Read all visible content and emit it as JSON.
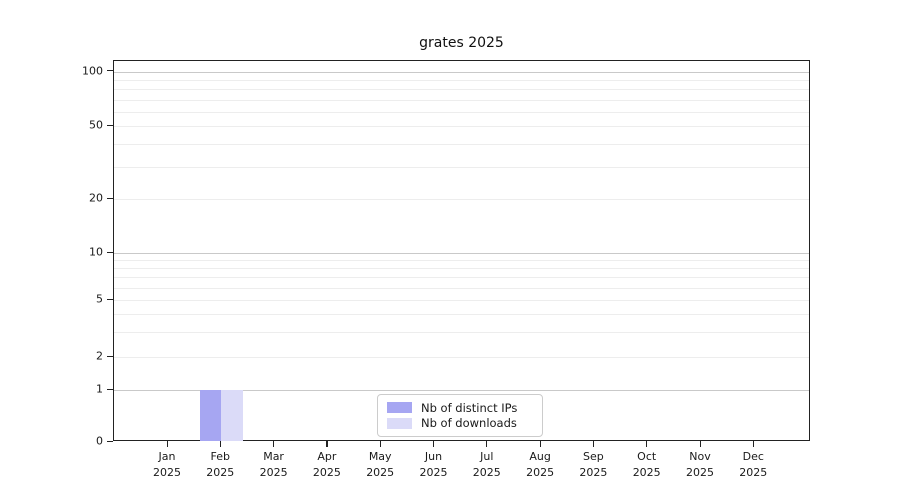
{
  "chart_data": {
    "type": "bar",
    "title": "grates 2025",
    "x_labels": [
      {
        "month": "Jan",
        "year": "2025"
      },
      {
        "month": "Feb",
        "year": "2025"
      },
      {
        "month": "Mar",
        "year": "2025"
      },
      {
        "month": "Apr",
        "year": "2025"
      },
      {
        "month": "May",
        "year": "2025"
      },
      {
        "month": "Jun",
        "year": "2025"
      },
      {
        "month": "Jul",
        "year": "2025"
      },
      {
        "month": "Aug",
        "year": "2025"
      },
      {
        "month": "Sep",
        "year": "2025"
      },
      {
        "month": "Oct",
        "year": "2025"
      },
      {
        "month": "Nov",
        "year": "2025"
      },
      {
        "month": "Dec",
        "year": "2025"
      }
    ],
    "series": [
      {
        "name": "Nb of distinct IPs",
        "color": "#a6a6f2",
        "values": [
          0,
          1,
          0,
          0,
          0,
          0,
          0,
          0,
          0,
          0,
          0,
          0
        ]
      },
      {
        "name": "Nb of downloads",
        "color": "#dbdbf8",
        "values": [
          0,
          1,
          0,
          0,
          0,
          0,
          0,
          0,
          0,
          0,
          0,
          0
        ]
      }
    ],
    "y_ticks": [
      0,
      1,
      2,
      5,
      10,
      20,
      50,
      100
    ],
    "y_minor_gridlines": [
      3,
      4,
      6,
      7,
      8,
      9,
      30,
      40,
      60,
      70,
      80,
      90
    ],
    "y_scale": "symlog",
    "ylim": [
      0,
      115
    ],
    "grid": "horizontal",
    "legend_position": "lower center inside"
  }
}
